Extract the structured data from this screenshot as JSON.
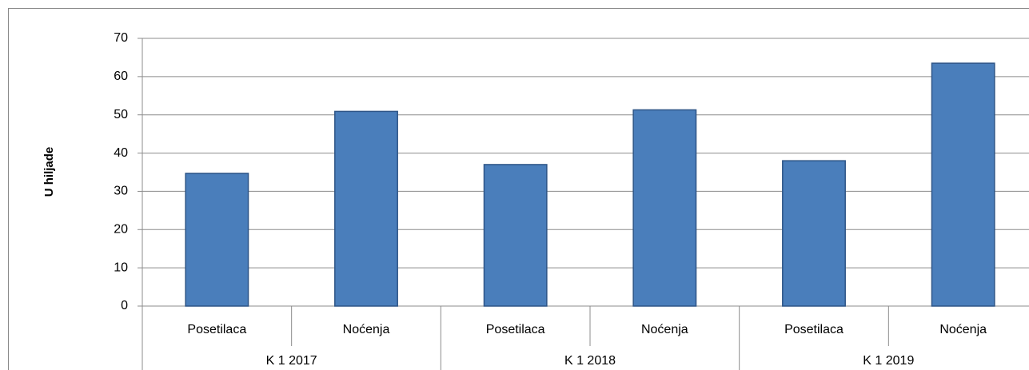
{
  "chart_data": {
    "type": "bar",
    "y_label": "U hiljade",
    "categories": [
      "Posetilaca",
      "Noćenja",
      "Posetilaca",
      "Noćenja",
      "Posetilaca",
      "Noćenja"
    ],
    "groups": [
      "K 1 2017",
      "K 1 2018",
      "K 1 2019"
    ],
    "values": [
      34.7,
      50.9,
      37.0,
      51.3,
      38.0,
      63.5
    ],
    "color": "#4a7ebb",
    "ylim": [
      0,
      70
    ],
    "yticks": [
      0,
      10,
      20,
      30,
      40,
      50,
      60,
      70
    ],
    "grid": true
  }
}
